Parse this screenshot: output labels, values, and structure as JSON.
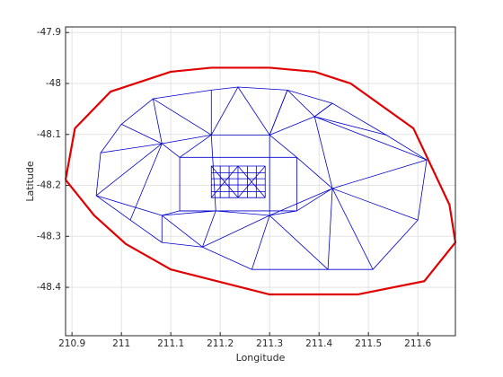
{
  "chart_data": {
    "type": "line",
    "xlabel": "Longitude",
    "ylabel": "Latitude",
    "xlim": [
      210.887,
      211.676
    ],
    "ylim": [
      -48.495,
      -47.889
    ],
    "xticks": [
      210.9,
      211,
      211.1,
      211.2,
      211.3,
      211.4,
      211.5,
      211.6
    ],
    "yticks": [
      -47.9,
      -48,
      -48.1,
      -48.2,
      -48.3,
      -48.4
    ],
    "grid": true,
    "series": [
      {
        "color": "#0000cc",
        "line_width": 0.8,
        "x": [
          210.949,
          210.958,
          211.0,
          211.064,
          211.182,
          211.236,
          211.336,
          211.427,
          211.536,
          211.618,
          211.6,
          211.509,
          211.418,
          211.264,
          211.164,
          211.082,
          211.018,
          210.949,
          null,
          210.958,
          211.082,
          211.182,
          211.3,
          211.391,
          211.536,
          null,
          210.949,
          211.082,
          211.191,
          211.3,
          211.427,
          211.6,
          null,
          211.064,
          211.082,
          211.018,
          null,
          211.182,
          211.182,
          211.191,
          211.164,
          null,
          211.336,
          211.3,
          211.3,
          211.264,
          null,
          211.427,
          211.391,
          211.427,
          211.418,
          null,
          211.618,
          211.427,
          211.509,
          null,
          211.064,
          211.182,
          211.236,
          211.3,
          211.336,
          211.391,
          211.427,
          null,
          211.0,
          211.082,
          210.949,
          null,
          211.082,
          211.082,
          211.164,
          211.3,
          211.418,
          null,
          211.391,
          211.618,
          null,
          211.118,
          211.355,
          211.355,
          211.118,
          211.118,
          null,
          211.182,
          211.291,
          null,
          211.182,
          211.291,
          null,
          211.182,
          211.291,
          null,
          211.182,
          211.291,
          null,
          211.182,
          211.291,
          null,
          211.182,
          211.291,
          null,
          211.182,
          211.182,
          null,
          211.2,
          211.2,
          null,
          211.218,
          211.218,
          null,
          211.236,
          211.236,
          null,
          211.255,
          211.255,
          null,
          211.273,
          211.273,
          null,
          211.291,
          211.291,
          null,
          211.182,
          211.236,
          null,
          211.236,
          211.291,
          null,
          211.182,
          211.236,
          null,
          211.236,
          211.291,
          null,
          211.182,
          211.118,
          211.082,
          null,
          211.3,
          211.355,
          211.427,
          null,
          211.191,
          211.118,
          211.082,
          null,
          211.3,
          211.355,
          211.427
        ],
        "y": [
          -48.22,
          -48.136,
          -48.08,
          -48.03,
          -48.013,
          -48.007,
          -48.013,
          -48.039,
          -48.101,
          -48.15,
          -48.268,
          -48.365,
          -48.365,
          -48.365,
          -48.321,
          -48.312,
          -48.268,
          -48.22,
          null,
          -48.136,
          -48.118,
          -48.101,
          -48.101,
          -48.065,
          -48.101,
          null,
          -48.22,
          -48.259,
          -48.25,
          -48.259,
          -48.206,
          -48.268,
          null,
          -48.03,
          -48.118,
          -48.268,
          null,
          -48.013,
          -48.101,
          -48.25,
          -48.321,
          null,
          -48.013,
          -48.101,
          -48.259,
          -48.365,
          null,
          -48.039,
          -48.065,
          -48.206,
          -48.365,
          null,
          -48.15,
          -48.206,
          -48.365,
          null,
          -48.03,
          -48.101,
          -48.007,
          -48.101,
          -48.013,
          -48.065,
          -48.039,
          null,
          -48.08,
          -48.118,
          -48.22,
          null,
          -48.312,
          -48.259,
          -48.321,
          -48.259,
          -48.365,
          null,
          -48.065,
          -48.15,
          null,
          -48.145,
          -48.145,
          -48.25,
          -48.25,
          -48.145,
          null,
          -48.162,
          -48.162,
          null,
          -48.175,
          -48.175,
          null,
          -48.187,
          -48.187,
          null,
          -48.199,
          -48.199,
          null,
          -48.212,
          -48.212,
          null,
          -48.224,
          -48.224,
          null,
          -48.162,
          -48.224,
          null,
          -48.162,
          -48.224,
          null,
          -48.162,
          -48.224,
          null,
          -48.162,
          -48.224,
          null,
          -48.162,
          -48.224,
          null,
          -48.162,
          -48.224,
          null,
          -48.162,
          -48.224,
          null,
          -48.224,
          -48.162,
          null,
          -48.224,
          -48.162,
          null,
          -48.162,
          -48.224,
          null,
          -48.162,
          -48.224,
          null,
          -48.101,
          -48.145,
          -48.118,
          null,
          -48.101,
          -48.145,
          -48.206,
          null,
          -48.25,
          -48.25,
          -48.259,
          null,
          -48.259,
          -48.25,
          -48.206
        ]
      },
      {
        "color": "#e00000",
        "line_width": 2.2,
        "x": [
          210.887,
          210.906,
          210.978,
          211.1,
          211.182,
          211.3,
          211.391,
          211.464,
          211.591,
          211.664,
          211.676,
          211.613,
          211.478,
          211.3,
          211.1,
          211.009,
          210.945,
          210.887
        ],
        "y": [
          -48.189,
          -48.088,
          -48.016,
          -47.977,
          -47.969,
          -47.969,
          -47.977,
          -48.0,
          -48.088,
          -48.238,
          -48.312,
          -48.388,
          -48.414,
          -48.414,
          -48.365,
          -48.315,
          -48.259,
          -48.189
        ]
      }
    ]
  }
}
